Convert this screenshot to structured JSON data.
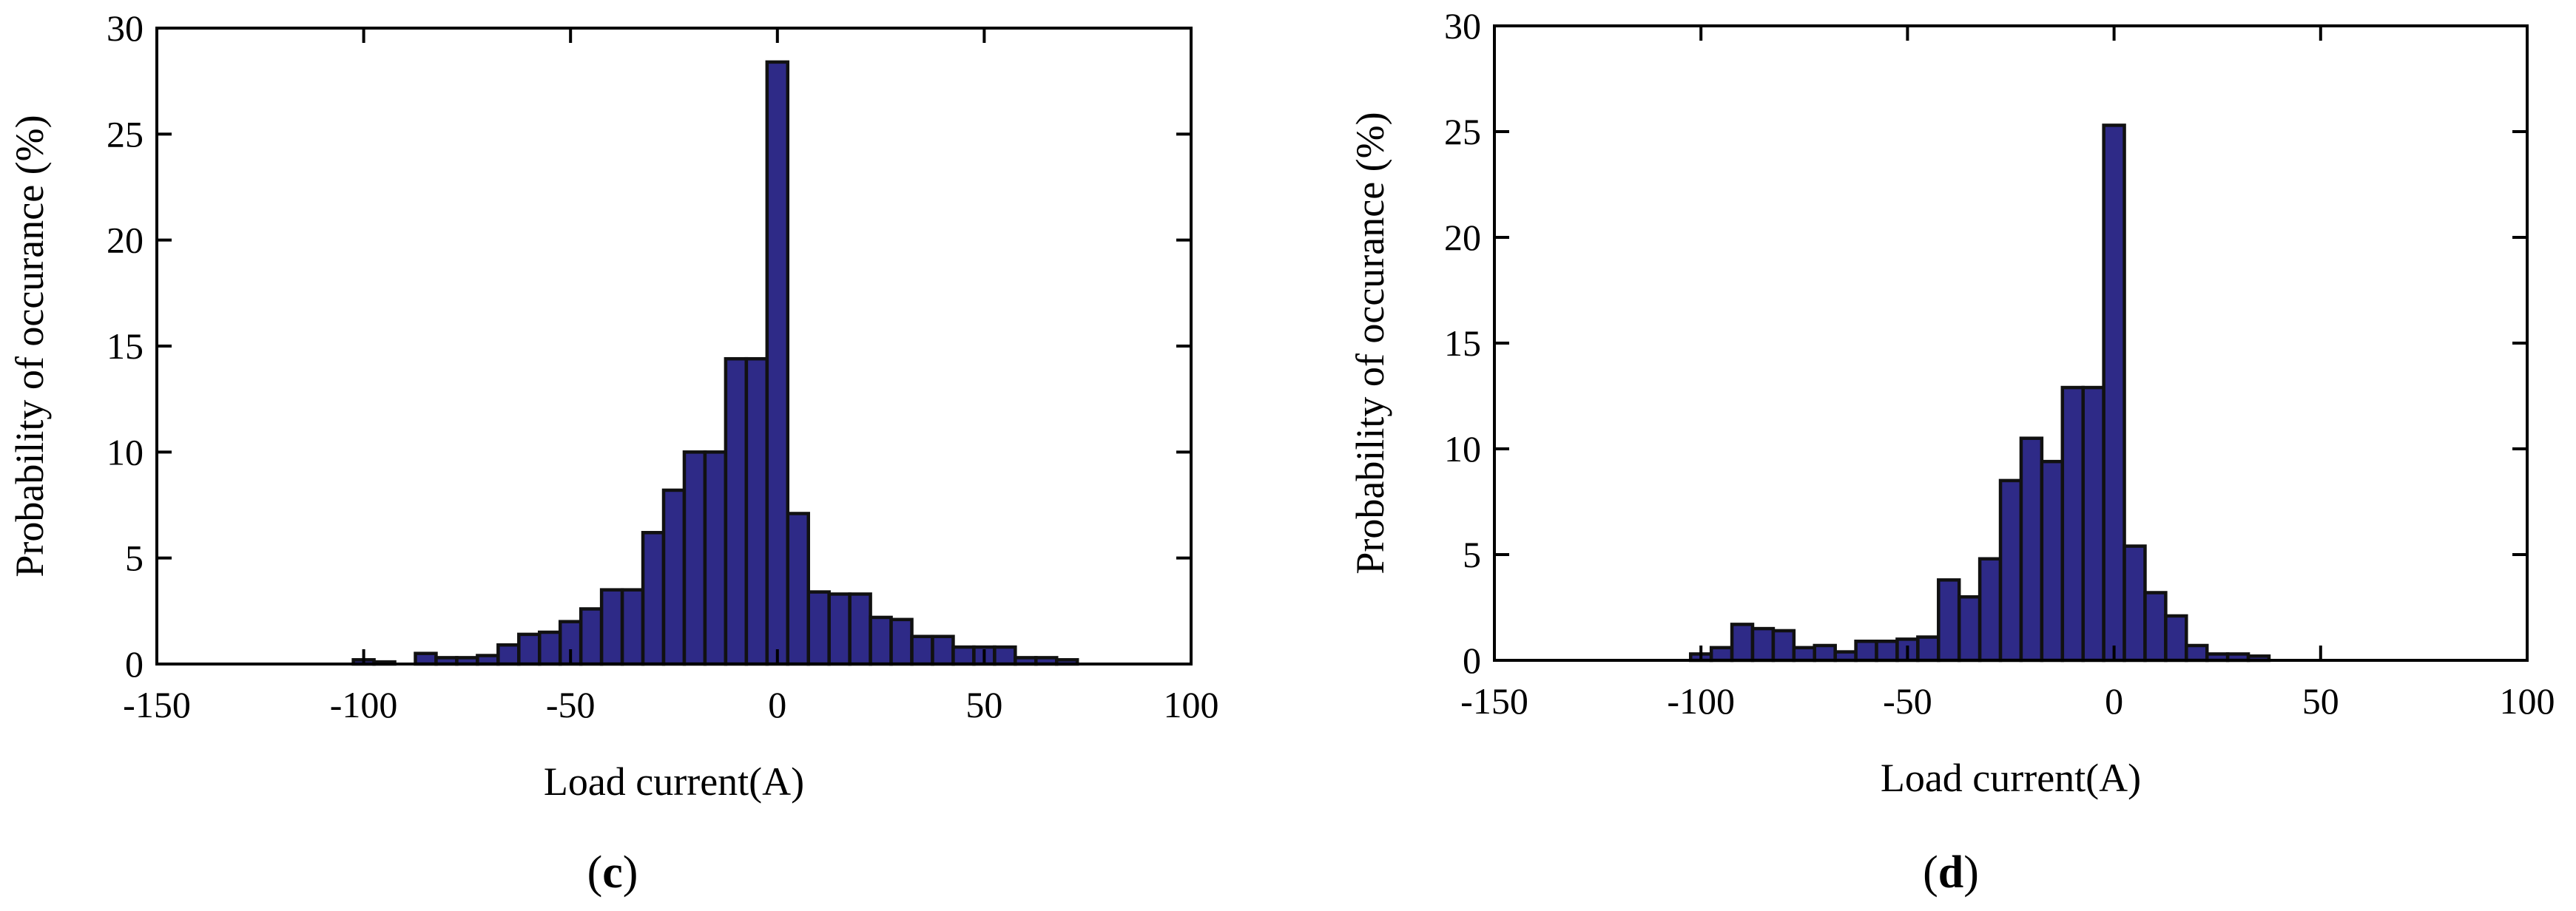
{
  "chart_data": [
    {
      "type": "bar",
      "panel_label": "c",
      "xlabel": "Load current(A)",
      "ylabel": "Probability of occurance (%)",
      "xlim": [
        -150,
        100
      ],
      "ylim": [
        0,
        30
      ],
      "xticks": [
        -150,
        -100,
        -50,
        0,
        50,
        100
      ],
      "yticks": [
        0,
        5,
        10,
        15,
        20,
        25,
        30
      ],
      "bar_color": "#2e2a87",
      "edge_color": "#111111",
      "grid": false,
      "bin_width": 5,
      "x": [
        -100,
        -95,
        -85,
        -80,
        -75,
        -70,
        -65,
        -60,
        -55,
        -50,
        -45,
        -40,
        -35,
        -30,
        -25,
        -20,
        -15,
        -10,
        -5,
        0,
        5,
        10,
        15,
        20,
        25,
        30,
        35,
        40,
        45,
        50,
        55,
        60,
        65,
        70
      ],
      "values": [
        0.2,
        0.1,
        0.5,
        0.3,
        0.3,
        0.4,
        0.9,
        1.4,
        1.5,
        2.0,
        2.6,
        3.5,
        3.5,
        6.2,
        8.2,
        10.0,
        10.0,
        14.4,
        14.4,
        28.4,
        7.1,
        3.4,
        3.3,
        3.3,
        2.2,
        2.1,
        1.3,
        1.3,
        0.8,
        0.8,
        0.8,
        0.3,
        0.3,
        0.2
      ]
    },
    {
      "type": "bar",
      "panel_label": "d",
      "xlabel": "Load current(A)",
      "ylabel": "Probability of occurance (%)",
      "xlim": [
        -150,
        100
      ],
      "ylim": [
        0,
        30
      ],
      "xticks": [
        -150,
        -100,
        -50,
        0,
        50,
        100
      ],
      "yticks": [
        0,
        5,
        10,
        15,
        20,
        25,
        30
      ],
      "bar_color": "#2e2a87",
      "edge_color": "#111111",
      "grid": false,
      "bin_width": 5,
      "x": [
        -100,
        -95,
        -90,
        -85,
        -80,
        -75,
        -70,
        -65,
        -60,
        -55,
        -50,
        -45,
        -40,
        -35,
        -30,
        -25,
        -20,
        -15,
        -10,
        -5,
        0,
        5,
        10,
        15,
        20,
        25,
        30,
        35
      ],
      "values": [
        0.3,
        0.6,
        1.7,
        1.5,
        1.4,
        0.6,
        0.7,
        0.4,
        0.9,
        0.9,
        1.0,
        1.1,
        3.8,
        3.0,
        4.8,
        8.5,
        10.5,
        9.4,
        12.9,
        12.9,
        25.3,
        5.4,
        3.2,
        2.1,
        0.7,
        0.3,
        0.3,
        0.2
      ]
    }
  ]
}
